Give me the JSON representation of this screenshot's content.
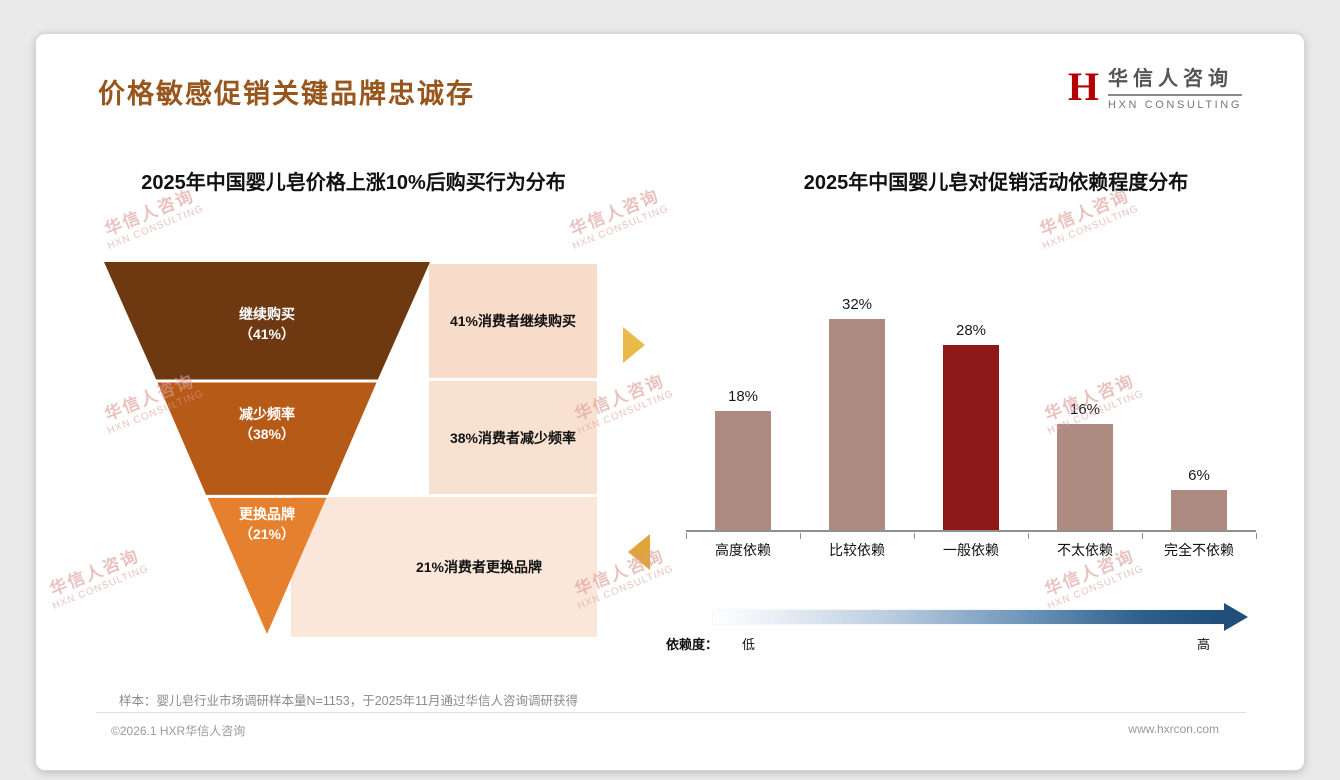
{
  "slide": {
    "title": "价格敏感促销关键品牌忠诚存",
    "sample_note": "样本：婴儿皂行业市场调研样本量N=1153，于2025年11月通过华信人咨询调研获得",
    "footer_left": "©2026.1 HXR华信人咨询",
    "footer_right": "www.hxrcon.com"
  },
  "logo": {
    "mark": "H",
    "name_cn": "华信人咨询",
    "name_en": "HXN CONSULTING"
  },
  "watermark": {
    "line1": "华信人咨询",
    "line2": "HXN CONSULTING"
  },
  "chart_data": [
    {
      "type": "funnel",
      "title": "2025年中国婴儿皂价格上涨10%后购买行为分布",
      "steps": [
        {
          "label": "继续购买",
          "pct_label": "（41%）",
          "value": 41,
          "annotation": "41%消费者继续购买",
          "color": "#6E3911"
        },
        {
          "label": "减少频率",
          "pct_label": "（38%）",
          "value": 38,
          "annotation": "38%消费者减少频率",
          "color": "#B65A18"
        },
        {
          "label": "更换品牌",
          "pct_label": "（21%）",
          "value": 21,
          "annotation": "21%消费者更换品牌",
          "color": "#E5812E"
        }
      ]
    },
    {
      "type": "bar",
      "title": "2025年中国婴儿皂对促销活动依赖程度分布",
      "categories": [
        "高度依赖",
        "比较依赖",
        "一般依赖",
        "不太依赖",
        "完全不依赖"
      ],
      "values": [
        18,
        32,
        28,
        16,
        6
      ],
      "value_labels": [
        "18%",
        "32%",
        "28%",
        "16%",
        "6%"
      ],
      "bar_colors": [
        "#AE8B80",
        "#AE8B80",
        "#8C1818",
        "#AE8B80",
        "#AE8B80"
      ],
      "highlight_color": "#8C1818",
      "ylim": [
        0,
        35
      ],
      "grid": false,
      "axis_note": {
        "label": "依赖度：",
        "low": "低",
        "high": "高"
      },
      "gradient_colors": [
        "#ffffff",
        "#1f4e79"
      ]
    }
  ]
}
